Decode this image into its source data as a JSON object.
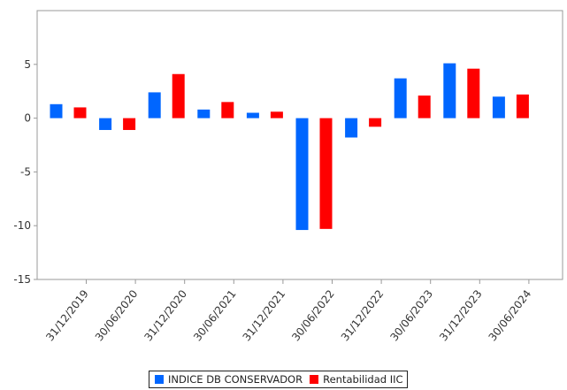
{
  "chart_data": {
    "type": "bar",
    "categories": [
      "31/12/2019",
      "30/06/2020",
      "31/12/2020",
      "30/06/2021",
      "31/12/2021",
      "30/06/2022",
      "31/12/2022",
      "30/06/2023",
      "31/12/2023",
      "30/06/2024"
    ],
    "series": [
      {
        "name": "INDICE DB CONSERVADOR",
        "color": "#0066ff",
        "values": [
          1.3,
          -1.1,
          2.4,
          0.8,
          0.5,
          -10.4,
          -1.8,
          3.7,
          5.1,
          2.0
        ]
      },
      {
        "name": "Rentabilidad IIC",
        "color": "#ff0000",
        "values": [
          1.0,
          -1.1,
          4.1,
          1.5,
          0.6,
          -10.3,
          -0.8,
          2.1,
          4.6,
          2.2
        ]
      }
    ],
    "ylim": [
      -15,
      10
    ],
    "yticks": [
      5,
      0,
      -5,
      -10,
      -15
    ],
    "ytick_labels": [
      "5",
      "0",
      "-5",
      "-10",
      "-15"
    ],
    "grid": false,
    "legend": "bottom",
    "title": "",
    "xlabel": "",
    "ylabel": ""
  }
}
